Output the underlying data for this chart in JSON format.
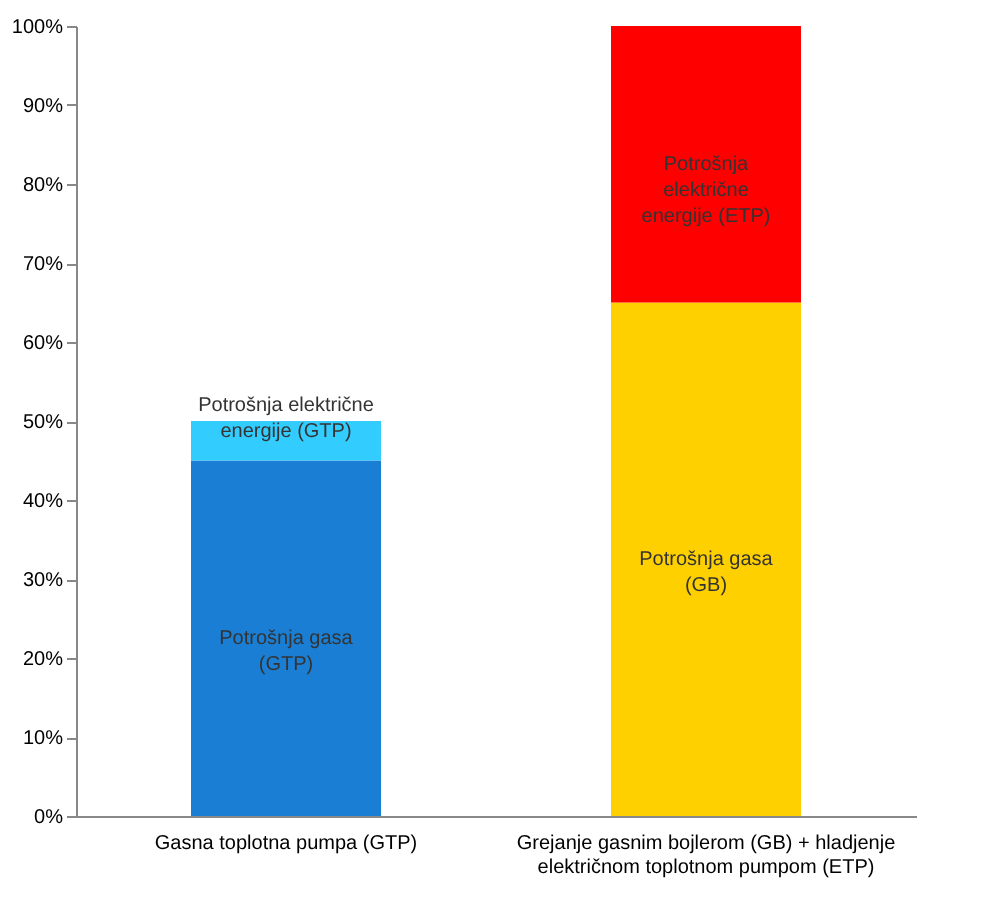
{
  "chart_data": {
    "type": "bar",
    "stacked": true,
    "categories": [
      "Gasna toplotna pumpa (GTP)",
      "Grejanje gasnim bojlerom (GB) + hladjenje električnom toplotnom pumpom (ETP)"
    ],
    "series": [
      {
        "name": "Potrošnja gasa (GTP)",
        "color": "#1a7fd4",
        "values": [
          45,
          null
        ]
      },
      {
        "name": "Potrošnja električne energije (GTP)",
        "color": "#33ccff",
        "values": [
          5,
          null
        ]
      },
      {
        "name": "Potrošnja gasa (GB)",
        "color": "#ffd000",
        "values": [
          null,
          65
        ]
      },
      {
        "name": "Potrošnja električne energije (ETP)",
        "color": "#ff0000",
        "values": [
          null,
          35
        ]
      }
    ],
    "ylim": [
      0,
      100
    ],
    "yticks": [
      {
        "value": 0,
        "label": "0%"
      },
      {
        "value": 10,
        "label": "10%"
      },
      {
        "value": 20,
        "label": "20%"
      },
      {
        "value": 30,
        "label": "30%"
      },
      {
        "value": 40,
        "label": "40%"
      },
      {
        "value": 50,
        "label": "50%"
      },
      {
        "value": 60,
        "label": "60%"
      },
      {
        "value": 70,
        "label": "70%"
      },
      {
        "value": 80,
        "label": "80%"
      },
      {
        "value": 90,
        "label": "90%"
      },
      {
        "value": 100,
        "label": "100%"
      }
    ],
    "grid": false,
    "legend": false
  }
}
